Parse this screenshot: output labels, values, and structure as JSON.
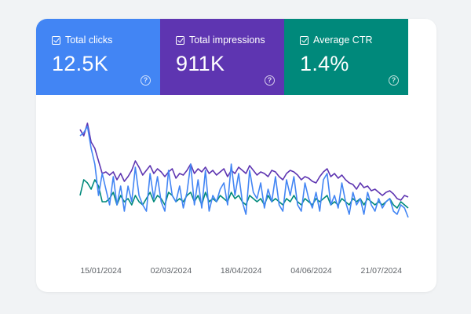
{
  "metrics": [
    {
      "label": "Total clicks",
      "value": "12.5K",
      "color": "#4285f4",
      "icon": "checkbox-checked-icon",
      "help_icon": "help-circle-icon"
    },
    {
      "label": "Total impressions",
      "value": "911K",
      "color": "#5e35b1",
      "icon": "checkbox-checked-icon",
      "help_icon": "help-circle-icon"
    },
    {
      "label": "Average CTR",
      "value": "1.4%",
      "color": "#00897b",
      "icon": "checkbox-checked-icon",
      "help_icon": "help-circle-icon"
    }
  ],
  "chart_data": {
    "type": "line",
    "x_axis": {
      "start": "2024-01-01",
      "end": "2024-08-08",
      "ticks": [
        "15/01/2024",
        "02/03/2024",
        "18/04/2024",
        "04/06/2024",
        "21/07/2024"
      ]
    },
    "grid": false,
    "legend": "none",
    "series": [
      {
        "metric": "Total impressions",
        "color": "#5e35b1",
        "values": [
          3900,
          3700,
          4100,
          3500,
          3300,
          2900,
          2500,
          2550,
          2450,
          2550,
          2300,
          2500,
          2250,
          2400,
          2600,
          2900,
          2700,
          2450,
          2600,
          2750,
          2500,
          2650,
          2550,
          2400,
          2550,
          2650,
          2350,
          2500,
          2450,
          2600,
          2800,
          2500,
          2650,
          2550,
          2700,
          2500,
          2600,
          2450,
          2550,
          2650,
          2400,
          2600,
          2500,
          2700,
          2600,
          2500,
          2750,
          2600,
          2450,
          2550,
          2500,
          2400,
          2600,
          2550,
          2400,
          2300,
          2500,
          2600,
          2550,
          2450,
          2300,
          2400,
          2350,
          2250,
          2200,
          2400,
          2550,
          2650,
          2400,
          2500,
          2350,
          2450,
          2300,
          2200,
          2150,
          2000,
          2200,
          2050,
          2100,
          1950,
          2000,
          1900,
          1800,
          1900,
          1950,
          1850,
          1700,
          1650,
          1800,
          1750
        ]
      },
      {
        "metric": "Total clicks",
        "color": "#4285f4",
        "values": [
          3700,
          3800,
          4000,
          3300,
          2800,
          1800,
          2500,
          2000,
          1500,
          2400,
          1500,
          2100,
          1300,
          2100,
          1600,
          2700,
          1800,
          1500,
          1300,
          2500,
          1700,
          2400,
          1600,
          1300,
          2600,
          1800,
          1600,
          2100,
          1400,
          1900,
          2800,
          1500,
          2300,
          1400,
          2600,
          1300,
          1800,
          1600,
          2000,
          2200,
          1500,
          2800,
          1800,
          2500,
          1600,
          1200,
          2600,
          1900,
          1700,
          2200,
          1400,
          2000,
          1600,
          2400,
          1500,
          1300,
          2300,
          1800,
          2400,
          1500,
          1300,
          2200,
          1700,
          1400,
          1900,
          1300,
          2300,
          2500,
          1500,
          1800,
          1400,
          2200,
          1600,
          1200,
          1900,
          1500,
          1700,
          1200,
          1900,
          1500,
          1300,
          1700,
          1400,
          1600,
          1700,
          1300,
          1200,
          1500,
          1400,
          1100
        ]
      },
      {
        "metric": "Average CTR",
        "color": "#00897b",
        "values": [
          1800,
          2300,
          2200,
          2000,
          2300,
          2100,
          1600,
          1600,
          1700,
          1900,
          1500,
          1800,
          1600,
          1700,
          1500,
          1800,
          1600,
          1500,
          1700,
          1900,
          1600,
          1800,
          1700,
          1500,
          1900,
          1800,
          1600,
          1700,
          1600,
          1800,
          1900,
          1600,
          1800,
          1500,
          1900,
          1600,
          1700,
          1600,
          1800,
          1700,
          1600,
          1900,
          1700,
          1800,
          1600,
          1500,
          1800,
          1700,
          1600,
          1700,
          1500,
          1800,
          1600,
          1700,
          1600,
          1500,
          1700,
          1600,
          1800,
          1600,
          1500,
          1700,
          1600,
          1500,
          1700,
          1600,
          1700,
          1800,
          1500,
          1600,
          1500,
          1700,
          1600,
          1500,
          1700,
          1600,
          1700,
          1500,
          1700,
          1600,
          1500,
          1600,
          1500,
          1600,
          1700,
          1500,
          1400,
          1600,
          1500,
          1400
        ]
      }
    ]
  }
}
